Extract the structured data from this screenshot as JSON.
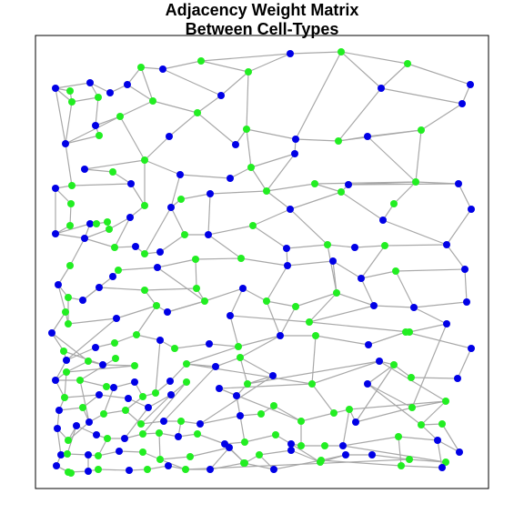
{
  "title": {
    "line1": "Adjacency Weight Matrix",
    "line2": "Between Cell-Types"
  },
  "colors": {
    "node_type_a": "#0000e6",
    "node_type_b": "#22ee22",
    "edge": "#a8a8a8",
    "frame": "#000000"
  },
  "chart_data": {
    "type": "graph",
    "title": "Adjacency Weight Matrix Between Cell-Types",
    "node_colors_meaning": "two cell types: blue and green",
    "axes_visible": false,
    "frame": true
  }
}
